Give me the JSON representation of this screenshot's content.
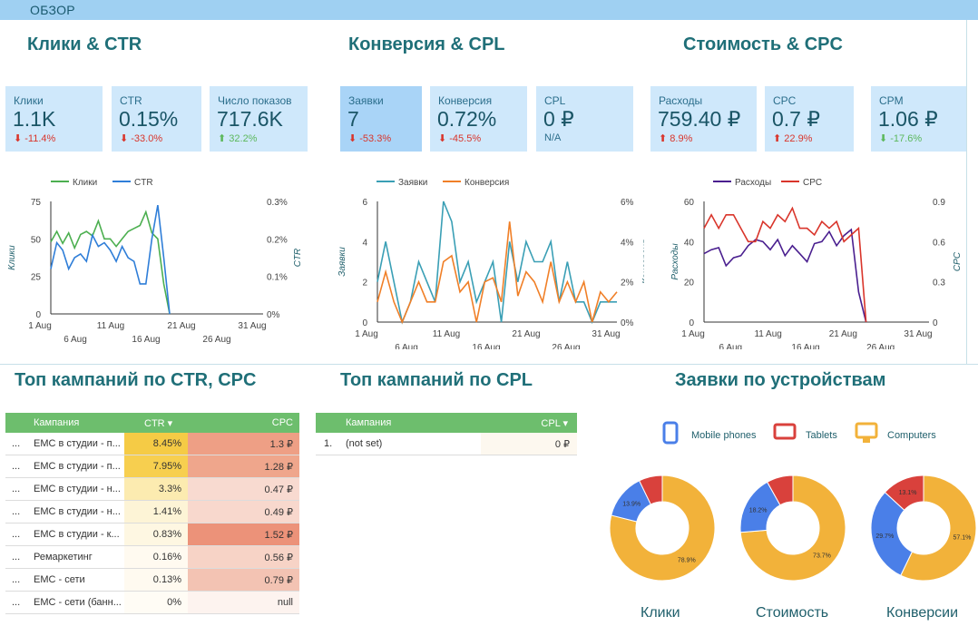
{
  "header": {
    "title": "ОБЗОР"
  },
  "sections": {
    "clicks_ctr": "Клики & CTR",
    "conv_cpl": "Конверсия & CPL",
    "cost_cpc": "Стоимость & CPC",
    "top_ctr_cpc": "Топ кампаний по CTR, CPC",
    "top_cpl": "Топ кампаний по CPL",
    "leads_devices": "Заявки по устройствам"
  },
  "kpis": [
    {
      "label": "Клики",
      "value": "1.1K",
      "change": "⬇ -11.4%",
      "trend": "neg"
    },
    {
      "label": "CTR",
      "value": "0.15%",
      "change": "⬇ -33.0%",
      "trend": "neg"
    },
    {
      "label": "Число показов",
      "value": "717.6K",
      "change": "⬆ 32.2%",
      "trend": "pos"
    },
    {
      "label": "Заявки",
      "value": "7",
      "change": "⬇ -53.3%",
      "trend": "neg"
    },
    {
      "label": "Конверсия",
      "value": "0.72%",
      "change": "⬇ -45.5%",
      "trend": "neg"
    },
    {
      "label": "CPL",
      "value": "0 ₽",
      "change": "N/A",
      "trend": "na"
    },
    {
      "label": "Расходы",
      "value": "759.40 ₽",
      "change": "⬆ 8.9%",
      "trend": "neg"
    },
    {
      "label": "CPC",
      "value": "0.7 ₽",
      "change": "⬆ 22.9%",
      "trend": "neg"
    },
    {
      "label": "CPM",
      "value": "1.06 ₽",
      "change": "⬇ -17.6%",
      "trend": "pos"
    }
  ],
  "chart_data": [
    {
      "type": "line",
      "x_ticks_top": [
        "1 Aug",
        "11 Aug",
        "21 Aug",
        "31 Aug"
      ],
      "x_ticks_bottom": [
        "6 Aug",
        "16 Aug",
        "26 Aug"
      ],
      "ylabel_left": "Клики",
      "ylabel_right": "CTR",
      "yticks_left": [
        "0",
        "25",
        "50",
        "75"
      ],
      "yticks_right": [
        "0%",
        "0.1%",
        "0.2%",
        "0.3%"
      ],
      "ylim_left": [
        0,
        75
      ],
      "ylim_right": [
        0,
        0.3
      ],
      "grid": false,
      "legend": "top",
      "series": [
        {
          "name": "Клики",
          "color": "#4caf50",
          "axis": "left",
          "values": [
            48,
            55,
            47,
            54,
            44,
            53,
            55,
            52,
            62,
            50,
            50,
            45,
            50,
            55,
            57,
            59,
            68,
            54,
            50,
            20,
            0
          ]
        },
        {
          "name": "CTR",
          "color": "#2f7ed8",
          "axis": "right",
          "values": [
            0.12,
            0.19,
            0.17,
            0.12,
            0.15,
            0.16,
            0.14,
            0.21,
            0.18,
            0.19,
            0.17,
            0.14,
            0.18,
            0.15,
            0.14,
            0.08,
            0.08,
            0.2,
            0.29,
            0.15,
            0.0
          ]
        }
      ]
    },
    {
      "type": "line",
      "x_ticks_top": [
        "1 Aug",
        "11 Aug",
        "21 Aug",
        "31 Aug"
      ],
      "x_ticks_bottom": [
        "6 Aug",
        "16 Aug",
        "26 Aug"
      ],
      "ylabel_left": "Заявки",
      "ylabel_right": "Конверсия",
      "yticks_left": [
        "0",
        "2",
        "4",
        "6"
      ],
      "yticks_right": [
        "0%",
        "2%",
        "4%",
        "6%"
      ],
      "ylim_left": [
        0,
        6
      ],
      "ylim_right": [
        0,
        6
      ],
      "grid": false,
      "legend": "top",
      "series": [
        {
          "name": "Заявки",
          "color": "#3a9fb5",
          "axis": "left",
          "values": [
            2,
            4,
            2,
            0,
            1,
            3,
            2,
            1,
            6,
            5,
            2,
            3,
            1,
            2,
            3,
            0,
            4,
            2,
            4,
            3,
            3,
            4,
            1,
            3,
            1,
            1,
            0,
            1,
            1,
            1
          ]
        },
        {
          "name": "Конверсия",
          "color": "#f07f27",
          "axis": "right",
          "values": [
            1,
            2.5,
            1,
            0,
            1,
            2,
            1,
            1,
            3,
            3.3,
            1.5,
            2,
            0,
            2,
            2.2,
            1,
            5,
            1.3,
            2.5,
            2,
            1,
            3,
            1,
            2,
            1,
            2,
            0,
            1.5,
            1,
            1.5
          ]
        }
      ]
    },
    {
      "type": "line",
      "x_ticks_top": [
        "1 Aug",
        "11 Aug",
        "21 Aug",
        "31 Aug"
      ],
      "x_ticks_bottom": [
        "6 Aug",
        "16 Aug",
        "26 Aug"
      ],
      "ylabel_left": "Расходы",
      "ylabel_right": "CPC",
      "yticks_left": [
        "0",
        "20",
        "40",
        "60"
      ],
      "yticks_right": [
        "0",
        "0.3",
        "0.6",
        "0.9"
      ],
      "ylim_left": [
        0,
        60
      ],
      "ylim_right": [
        0,
        0.9
      ],
      "grid": false,
      "legend": "top",
      "series": [
        {
          "name": "Расходы",
          "color": "#4a1f8f",
          "axis": "left",
          "values": [
            34,
            36,
            37,
            28,
            32,
            33,
            38,
            41,
            40,
            36,
            41,
            33,
            38,
            34,
            30,
            39,
            40,
            45,
            38,
            43,
            46,
            15,
            0
          ]
        },
        {
          "name": "CPC",
          "color": "#d9352b",
          "axis": "right",
          "values": [
            0.7,
            0.8,
            0.7,
            0.8,
            0.8,
            0.7,
            0.6,
            0.6,
            0.75,
            0.7,
            0.8,
            0.75,
            0.85,
            0.7,
            0.7,
            0.65,
            0.75,
            0.7,
            0.75,
            0.6,
            0.65,
            0.7,
            0.0
          ]
        }
      ]
    },
    {
      "type": "pie",
      "title": "Клики",
      "labels": [
        "Mobile phones",
        "Tablets",
        "Computers"
      ],
      "values": [
        13.9,
        7.2,
        78.9
      ],
      "shown_labels": [
        "13.9%",
        "",
        "78.9%"
      ]
    },
    {
      "type": "pie",
      "title": "Стоимость",
      "labels": [
        "Mobile phones",
        "Tablets",
        "Computers"
      ],
      "values": [
        18.2,
        8.1,
        73.7
      ],
      "shown_labels": [
        "18.2%",
        "",
        "73.7%"
      ]
    },
    {
      "type": "pie",
      "title": "Конверсии",
      "labels": [
        "Mobile phones",
        "Tablets",
        "Computers"
      ],
      "values": [
        29.7,
        13.1,
        57.1
      ],
      "shown_labels": [
        "29.7%",
        "13.1%",
        "57.1%"
      ]
    }
  ],
  "devices_legend": [
    {
      "label": "Mobile phones",
      "icon": "mobile-phone-icon",
      "color": "#4a7fe8"
    },
    {
      "label": "Tablets",
      "icon": "tablet-icon",
      "color": "#d9413c"
    },
    {
      "label": "Computers",
      "icon": "computer-icon",
      "color": "#f2b23a"
    }
  ],
  "table_ctr_cpc": {
    "headers": {
      "campaign": "Кампания",
      "ctr": "CTR ▾",
      "cpc": "CPC"
    },
    "rows": [
      {
        "n": "...",
        "campaign": "EMC в студии - п...",
        "ctr": "8.45%",
        "cpc": "1.3 ₽",
        "ctr_bg": "#f5cb45",
        "cpc_bg": "#ee9f85"
      },
      {
        "n": "...",
        "campaign": "EMC в студии - п...",
        "ctr": "7.95%",
        "cpc": "1.28 ₽",
        "ctr_bg": "#f7cf4f",
        "cpc_bg": "#efa68c"
      },
      {
        "n": "...",
        "campaign": "EMC в студии - н...",
        "ctr": "3.3%",
        "cpc": "0.47 ₽",
        "ctr_bg": "#fcebb0",
        "cpc_bg": "#f8dad0"
      },
      {
        "n": "...",
        "campaign": "EMC в студии - н...",
        "ctr": "1.41%",
        "cpc": "0.49 ₽",
        "ctr_bg": "#fdf4d6",
        "cpc_bg": "#f8d8cd"
      },
      {
        "n": "...",
        "campaign": "EMC в студии - к...",
        "ctr": "0.83%",
        "cpc": "1.52 ₽",
        "ctr_bg": "#fef7e2",
        "cpc_bg": "#ec9279"
      },
      {
        "n": "...",
        "campaign": "Ремаркетинг",
        "ctr": "0.16%",
        "cpc": "0.56 ₽",
        "ctr_bg": "#fffaf0",
        "cpc_bg": "#f7d3c6"
      },
      {
        "n": "...",
        "campaign": "EMC - сети",
        "ctr": "0.13%",
        "cpc": "0.79 ₽",
        "ctr_bg": "#fffaf0",
        "cpc_bg": "#f3c3b3"
      },
      {
        "n": "...",
        "campaign": "EMC - сети (банн...",
        "ctr": "0%",
        "cpc": "null",
        "ctr_bg": "#fffcf5",
        "cpc_bg": "#fdf3ef"
      }
    ]
  },
  "table_cpl": {
    "headers": {
      "campaign": "Кампания",
      "cpl": "CPL ▾"
    },
    "rows": [
      {
        "n": "1.",
        "campaign": "(not set)",
        "cpl": "0 ₽"
      }
    ]
  }
}
